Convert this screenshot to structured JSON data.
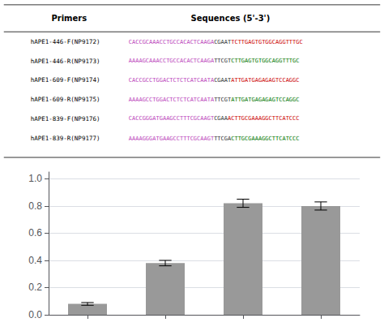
{
  "chart_data": [
    {
      "type": "table",
      "columns": [
        "Primers",
        "Sequences (5'-3')"
      ],
      "rows": [
        {
          "primer": "hAPE1-446-F(NP9172)",
          "sequence": [
            {
              "text": "CACCGCAAACCTGCCACACTCAAGA",
              "color": "#bb44bb"
            },
            {
              "text": "CGAAT",
              "color": "#333333"
            },
            {
              "text": "TCTTGAGTGTGGCAGGTTTGC",
              "color": "#cc0000"
            }
          ]
        },
        {
          "primer": "hAPE1-446-R(NP9173)",
          "sequence": [
            {
              "text": "AAAAGCAAACCTGCCACACTCAAGA",
              "color": "#bb44bb"
            },
            {
              "text": "TTCGT",
              "color": "#333333"
            },
            {
              "text": "CTTGAGTGTGGCAGGTTTGC",
              "color": "#007700"
            }
          ]
        },
        {
          "primer": "hAPE1-609-F(NP9174)",
          "sequence": [
            {
              "text": "CACCGCCTGGACTCTCTCATCAATA",
              "color": "#bb44bb"
            },
            {
              "text": "CGAAT",
              "color": "#333333"
            },
            {
              "text": "ATTGATGAGAGAGTCCAGGC",
              "color": "#cc0000"
            }
          ]
        },
        {
          "primer": "hAPE1-609-R(NP9175)",
          "sequence": [
            {
              "text": "AAAAGCCTGGACTCTCTCATCAATA",
              "color": "#bb44bb"
            },
            {
              "text": "TTCGT",
              "color": "#333333"
            },
            {
              "text": "ATTGATGAGAGAGTCCAGGC",
              "color": "#007700"
            }
          ]
        },
        {
          "primer": "hAPE1-839-F(NP9176)",
          "sequence": [
            {
              "text": "CACCGGGATGAAGCCTTTCGCAAGT",
              "color": "#bb44bb"
            },
            {
              "text": "CGAA",
              "color": "#333333"
            },
            {
              "text": "ACTTGCGAAAGGCTTCATCCC",
              "color": "#cc0000"
            }
          ]
        },
        {
          "primer": "hAPE1-839-R(NP9177)",
          "sequence": [
            {
              "text": "AAAAGGGATGAAGCCTTTCGCAAGT",
              "color": "#bb44bb"
            },
            {
              "text": "TTCGA",
              "color": "#333333"
            },
            {
              "text": "CTTGCGAAAGGCTTCATCCC",
              "color": "#007700"
            }
          ]
        }
      ]
    },
    {
      "type": "bar",
      "categories": [
        null,
        null,
        null,
        null
      ],
      "values": [
        0.08,
        0.38,
        0.82,
        0.8
      ],
      "errors": [
        0.01,
        0.02,
        0.03,
        0.03
      ],
      "color": "#999999",
      "ylim": [
        0,
        1.05
      ],
      "yticks": [
        {
          "value": 0,
          "label": "0.0"
        },
        0.2,
        0.4,
        0.6,
        0.8,
        {
          "value": 1,
          "label": "1.0"
        }
      ],
      "grid": true,
      "tick_labels": "y"
    }
  ]
}
